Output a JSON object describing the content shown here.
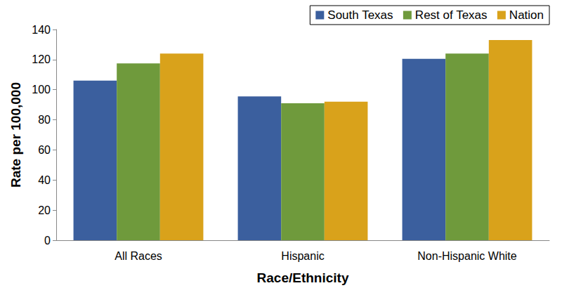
{
  "chart_data": {
    "type": "bar",
    "x_label": "Race/Ethnicity",
    "y_label": "Rate per 100,000",
    "categories": [
      "All Races",
      "Hispanic",
      "Non-Hispanic White"
    ],
    "series": [
      {
        "name": "South Texas",
        "color": "#3b5f9e",
        "values": [
          106,
          95.5,
          120.5
        ]
      },
      {
        "name": "Rest of Texas",
        "color": "#6f9a3c",
        "values": [
          117.5,
          91,
          124
        ]
      },
      {
        "name": "Nation",
        "color": "#d9a21b",
        "values": [
          124,
          92,
          133
        ]
      }
    ],
    "ylim": [
      0,
      140
    ],
    "yticks": [
      0,
      20,
      40,
      60,
      80,
      100,
      120,
      140
    ],
    "grid": false,
    "legend": "top-right"
  }
}
